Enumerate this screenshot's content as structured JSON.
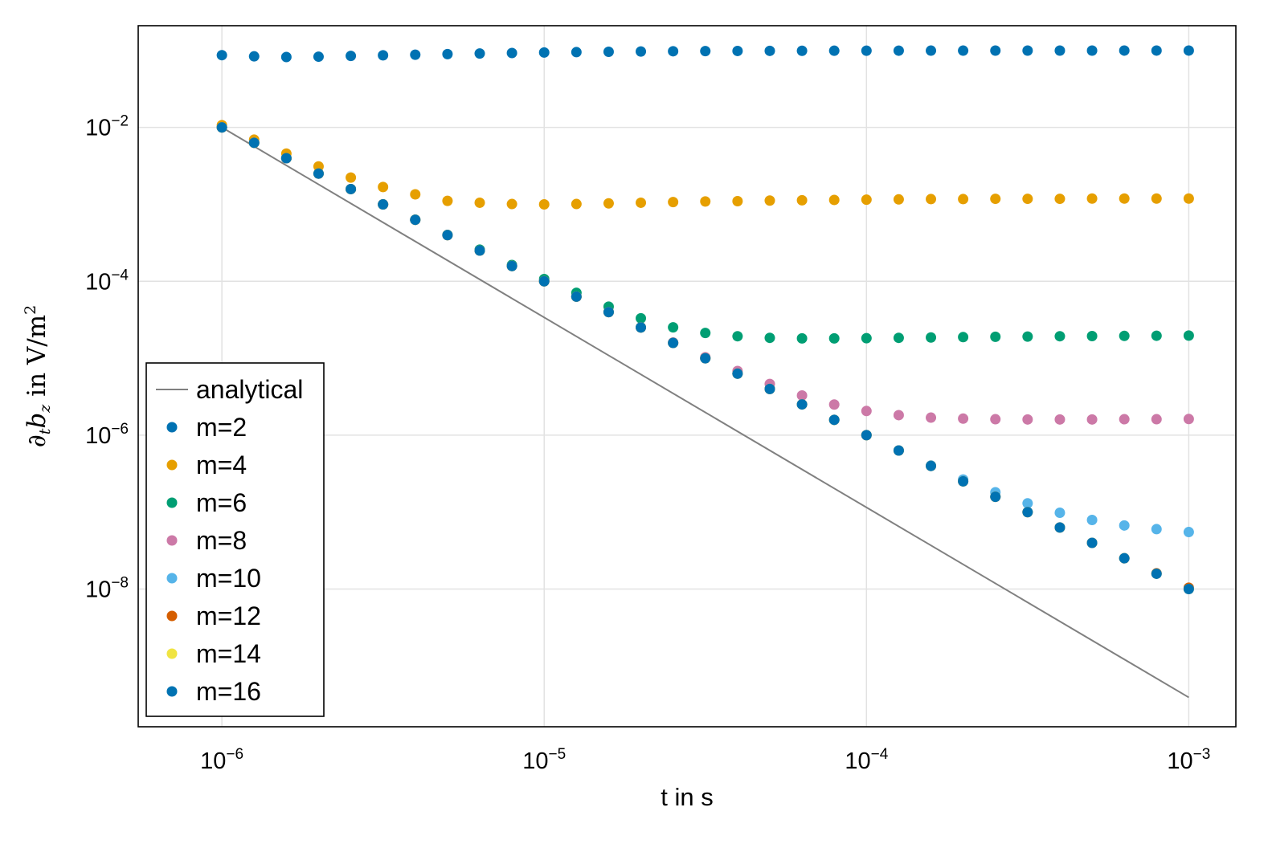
{
  "chart_data": {
    "type": "scatter",
    "title": "",
    "xlabel": "t in s",
    "ylabel": {
      "symbol": "∂",
      "sub_t": "t",
      "var": "b",
      "sub_z": "z",
      "unit_text": " in V/m",
      "unit_exp": "2"
    },
    "xscale": "log10",
    "yscale": "log10",
    "xlim": [
      5.5e-07,
      0.0014
    ],
    "ylim": [
      1.62e-10,
      0.21
    ],
    "grid": true,
    "legend_position": "bottom-left",
    "x_ticks": [
      {
        "value": 1e-06,
        "base": "10",
        "exp": "−6"
      },
      {
        "value": 1e-05,
        "base": "10",
        "exp": "−5"
      },
      {
        "value": 0.0001,
        "base": "10",
        "exp": "−4"
      },
      {
        "value": 0.001,
        "base": "10",
        "exp": "−3"
      }
    ],
    "y_ticks": [
      {
        "value": 1e-08,
        "base": "10",
        "exp": "−8"
      },
      {
        "value": 1e-06,
        "base": "10",
        "exp": "−6"
      },
      {
        "value": 0.0001,
        "base": "10",
        "exp": "−4"
      },
      {
        "value": 0.01,
        "base": "10",
        "exp": "−2"
      }
    ],
    "x": [
      1e-06,
      1.259e-06,
      1.585e-06,
      1.995e-06,
      2.512e-06,
      3.162e-06,
      3.981e-06,
      5.012e-06,
      6.31e-06,
      7.943e-06,
      1e-05,
      1.259e-05,
      1.585e-05,
      1.995e-05,
      2.512e-05,
      3.162e-05,
      3.981e-05,
      5.012e-05,
      6.31e-05,
      7.943e-05,
      0.0001,
      0.0001259,
      0.0001585,
      0.0001995,
      0.0002512,
      0.0003162,
      0.0003981,
      0.0005012,
      0.000631,
      0.0007943,
      0.001
    ],
    "analytical": {
      "name": "analytical",
      "color": "#808080",
      "x": [
        1e-06,
        0.001
      ],
      "y": [
        0.01,
        3.9e-10
      ]
    },
    "series": [
      {
        "name": "m=2",
        "color": "#0072B2",
        "values": [
          0.0869,
          0.0839,
          0.0822,
          0.0831,
          0.085,
          0.0866,
          0.0882,
          0.0898,
          0.0913,
          0.0928,
          0.0941,
          0.0952,
          0.0962,
          0.097,
          0.0977,
          0.0982,
          0.0986,
          0.0989,
          0.0991,
          0.0993,
          0.0994,
          0.0995,
          0.0996,
          0.0996,
          0.0997,
          0.0997,
          0.0997,
          0.0997,
          0.0998,
          0.0998,
          0.0998
        ]
      },
      {
        "name": "m=4",
        "color": "#E69F00",
        "values": [
          0.0107,
          0.00693,
          0.00457,
          0.00311,
          0.00223,
          0.00168,
          0.00135,
          0.00111,
          0.00105,
          0.00101,
          0.001,
          0.00101,
          0.00103,
          0.00105,
          0.00107,
          0.00109,
          0.0011,
          0.00112,
          0.00113,
          0.00114,
          0.00115,
          0.00116,
          0.00117,
          0.00117,
          0.00118,
          0.00118,
          0.00118,
          0.00119,
          0.00119,
          0.00119,
          0.00119
        ]
      },
      {
        "name": "m=6",
        "color": "#009E73",
        "values": [
          0.01,
          0.00631,
          0.00398,
          0.00251,
          0.00158,
          0.000998,
          0.000632,
          0.000401,
          0.000258,
          0.000163,
          0.000107,
          7.09e-05,
          4.68e-05,
          3.3e-05,
          2.52e-05,
          2.13e-05,
          1.93e-05,
          1.84e-05,
          1.81e-05,
          1.81e-05,
          1.82e-05,
          1.84e-05,
          1.86e-05,
          1.88e-05,
          1.9e-05,
          1.91e-05,
          1.93e-05,
          1.94e-05,
          1.95e-05,
          1.96e-05,
          1.97e-05
        ]
      },
      {
        "name": "m=8",
        "color": "#CC79A7",
        "values": [
          0.01,
          0.00631,
          0.00398,
          0.00251,
          0.00158,
          0.000998,
          0.00063,
          0.000398,
          0.000251,
          0.000158,
          0.0001,
          6.31e-05,
          3.98e-05,
          2.51e-05,
          1.6e-05,
          1.03e-05,
          6.82e-06,
          4.63e-06,
          3.28e-06,
          2.5e-06,
          2.06e-06,
          1.82e-06,
          1.69e-06,
          1.64e-06,
          1.61e-06,
          1.6e-06,
          1.6e-06,
          1.6e-06,
          1.61e-06,
          1.61e-06,
          1.62e-06
        ]
      },
      {
        "name": "m=10",
        "color": "#56B4E9",
        "values": [
          0.01,
          0.00631,
          0.00398,
          0.00251,
          0.00158,
          0.000998,
          0.00063,
          0.000398,
          0.000251,
          0.000158,
          0.0001,
          6.31e-05,
          3.98e-05,
          2.51e-05,
          1.58e-05,
          9.98e-06,
          6.3e-06,
          3.98e-06,
          2.51e-06,
          1.58e-06,
          1e-06,
          6.31e-07,
          4.03e-07,
          2.65e-07,
          1.81e-07,
          1.3e-07,
          9.8e-08,
          7.9e-08,
          6.7e-08,
          6e-08,
          5.5e-08
        ]
      },
      {
        "name": "m=12",
        "color": "#D55E00",
        "values": [
          0.01,
          0.00631,
          0.00398,
          0.00251,
          0.00158,
          0.000998,
          0.00063,
          0.000398,
          0.000251,
          0.000158,
          0.0001,
          6.31e-05,
          3.98e-05,
          2.51e-05,
          1.58e-05,
          9.98e-06,
          6.3e-06,
          3.98e-06,
          2.51e-06,
          1.58e-06,
          1e-06,
          6.31e-07,
          3.98e-07,
          2.51e-07,
          1.58e-07,
          9.98e-08,
          6.3e-08,
          3.98e-08,
          2.51e-08,
          1.6e-08,
          1.04e-08
        ]
      },
      {
        "name": "m=14",
        "color": "#F0E442",
        "values": [
          0.01,
          0.00631,
          0.00398,
          0.00251,
          0.00158,
          0.000998,
          0.00063,
          0.000398,
          0.000251,
          0.000158,
          0.0001,
          6.31e-05,
          3.98e-05,
          2.51e-05,
          1.58e-05,
          9.98e-06,
          6.3e-06,
          3.98e-06,
          2.51e-06,
          1.58e-06,
          1e-06,
          6.31e-07,
          3.98e-07,
          2.51e-07,
          1.58e-07,
          9.98e-08,
          6.3e-08,
          3.98e-08,
          2.51e-08,
          1.58e-08,
          1e-08
        ]
      },
      {
        "name": "m=16",
        "color": "#0072B2",
        "values": [
          0.01,
          0.00631,
          0.00398,
          0.00251,
          0.00158,
          0.000998,
          0.00063,
          0.000398,
          0.000251,
          0.000158,
          0.0001,
          6.31e-05,
          3.98e-05,
          2.51e-05,
          1.58e-05,
          9.98e-06,
          6.3e-06,
          3.98e-06,
          2.51e-06,
          1.58e-06,
          1e-06,
          6.31e-07,
          3.98e-07,
          2.51e-07,
          1.58e-07,
          9.98e-08,
          6.3e-08,
          3.98e-08,
          2.51e-08,
          1.58e-08,
          1e-08
        ]
      }
    ]
  }
}
